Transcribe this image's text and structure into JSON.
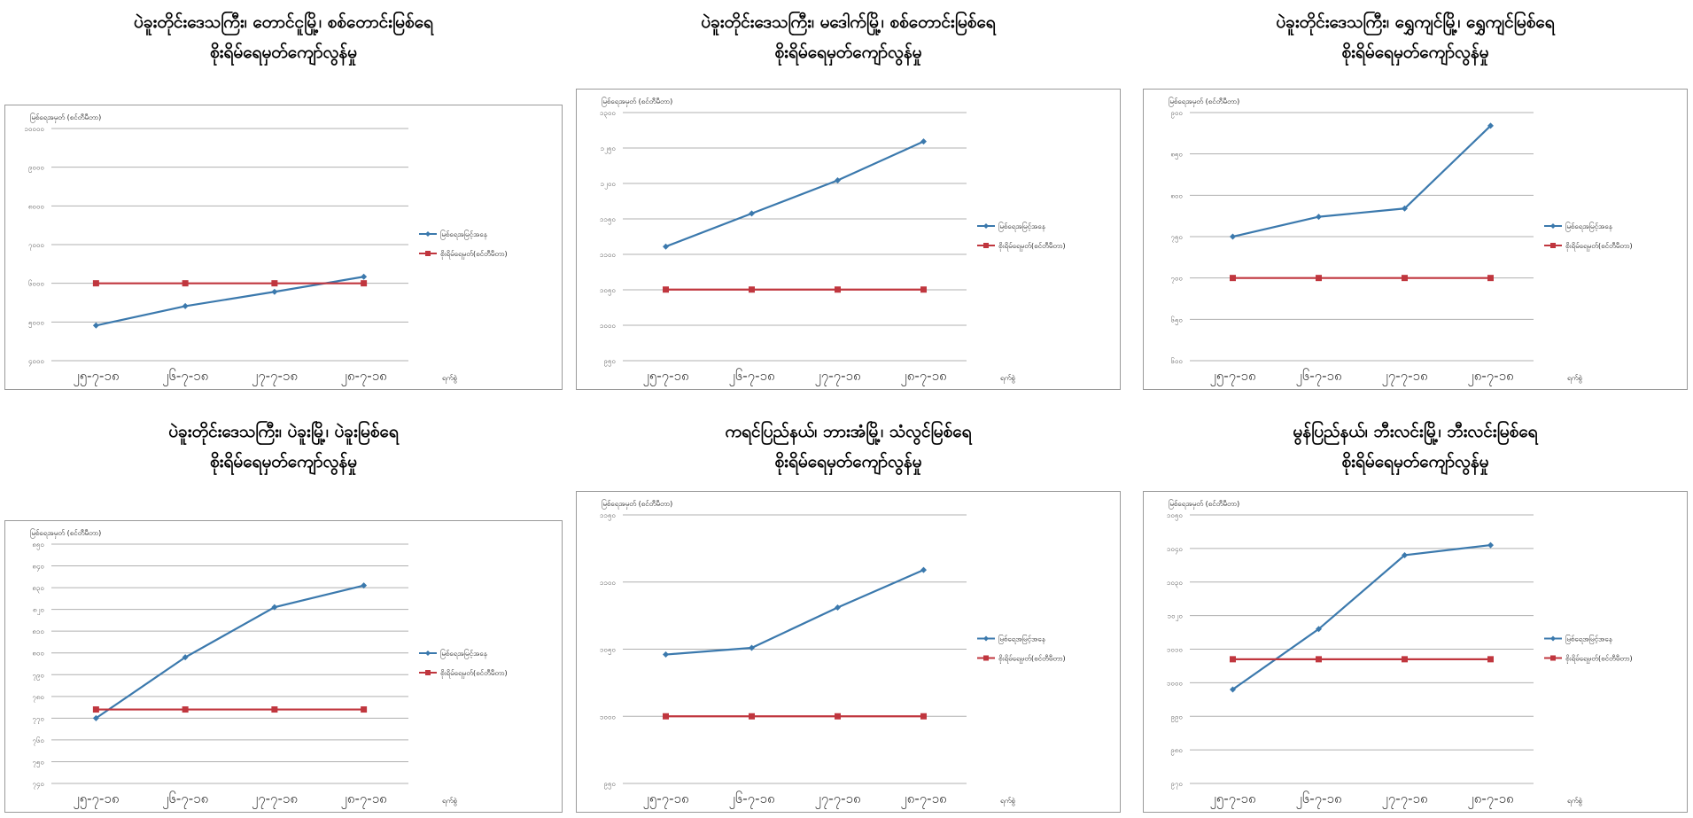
{
  "colors": {
    "water_level": "#3b79ad",
    "danger_level": "#c0363e",
    "grid": "#b0b0b0",
    "frame": "#9a9a9a"
  },
  "common": {
    "ylabel": "မြစ်ရေအမှတ် (စင်တီမီတာ)",
    "xlabel": "ရက်စွဲ",
    "legend_water": "မြစ်ရေအမြင့်အနေ",
    "legend_danger": "စိုးရိမ်ရေမှတ်(စင်တီမီတာ)"
  },
  "chart_data": [
    {
      "type": "line",
      "title": "ပဲခူးတိုင်းဒေသကြီး၊ တောင်ငူမြို့၊ စစ်တောင်းမြစ်ရေ",
      "subtitle": "စိုးရိမ်ရေမှတ်ကျော်လွန်မှု",
      "categories": [
        "၂၅-၇-၁၈",
        "၂၆-၇-၁၈",
        "၂၇-၇-၁၈",
        "၂၈-၇-၁၈"
      ],
      "series": [
        {
          "name": "မြစ်ရေအမြင့်အနေ",
          "values": [
            4910,
            5410,
            5780,
            6170
          ]
        },
        {
          "name": "စိုးရိမ်ရေမှတ်(စင်တီမီတာ)",
          "values": [
            6000,
            6000,
            6000,
            6000
          ]
        }
      ],
      "ylim": [
        4000,
        10000
      ],
      "yticks": [
        "၄၀၀၀",
        "၅၀၀၀",
        "၆၀၀၀",
        "၇၀၀၀",
        "၈၀၀၀",
        "၉၀၀၀",
        "၁၀၀၀၀"
      ],
      "grid": true,
      "legend": "right"
    },
    {
      "type": "line",
      "title": "ပဲခူးတိုင်းဒေသကြီး၊ မဒေါက်မြို့၊ စစ်တောင်းမြစ်ရေ",
      "subtitle": "စိုးရိမ်ရေမှတ်ကျော်လွန်မှု",
      "categories": [
        "၂၅-၇-၁၈",
        "၂၆-၇-၁၈",
        "၂၇-၇-၁၈",
        "၂၈-၇-၁၈"
      ],
      "series": [
        {
          "name": "မြစ်ရေအမြင့်အနေ",
          "values": [
            1088,
            1128,
            1168,
            1215
          ]
        },
        {
          "name": "စိုးရိမ်ရေမှတ်(စင်တီမီတာ)",
          "values": [
            1036,
            1036,
            1036,
            1036
          ]
        }
      ],
      "ylim": [
        950,
        1250
      ],
      "yticks": [
        "၉၅၀",
        "၁၀၀၀",
        "၁၀၅၀",
        "၁၁၀၀",
        "၁၁၅၀",
        "၁၂၀၀",
        "၁၂၅၀",
        "၁၃၀၀"
      ],
      "grid": true,
      "legend": "right"
    },
    {
      "type": "line",
      "title": "ပဲခူးတိုင်းဒေသကြီး၊ ရွှေကျင်မြို့၊ ရွှေကျင်မြစ်ရေ",
      "subtitle": "စိုးရိမ်ရေမှတ်ကျော်လွန်မှု",
      "categories": [
        "၂၅-၇-၁၈",
        "၂၆-၇-၁၈",
        "၂၇-၇-၁၈",
        "၂၈-၇-၁၈"
      ],
      "series": [
        {
          "name": "မြစ်ရေအမြင့်အနေ",
          "values": [
            750,
            774,
            784,
            884
          ]
        },
        {
          "name": "စိုးရိမ်ရေမှတ်(စင်တီမီတာ)",
          "values": [
            700,
            700,
            700,
            700
          ]
        }
      ],
      "ylim": [
        600,
        900
      ],
      "yticks": [
        "၆၀၀",
        "၆၅၀",
        "၇၀၀",
        "၇၅၀",
        "၈၀၀",
        "၈၅၀",
        "၉၀၀"
      ],
      "grid": true,
      "legend": "right"
    },
    {
      "type": "line",
      "title": "ပဲခူးတိုင်းဒေသကြီး၊ ပဲခူးမြို့၊ ပဲခူးမြစ်ရေ",
      "subtitle": "စိုးရိမ်ရေမှတ်ကျော်လွန်မှု",
      "categories": [
        "၂၅-၇-၁၈",
        "၂၆-၇-၁၈",
        "၂၇-၇-၁၈",
        "၂၈-၇-၁၈"
      ],
      "series": [
        {
          "name": "မြစ်ရေအမြင့်အနေ",
          "values": [
            770,
            798,
            821,
            831
          ]
        },
        {
          "name": "စိုးရိမ်ရေမှတ်(စင်တီမီတာ)",
          "values": [
            774,
            774,
            774,
            774
          ]
        }
      ],
      "ylim": [
        740,
        850
      ],
      "yticks": [
        "၇၄၀",
        "၇၅၀",
        "၇၆၀",
        "၇၇၀",
        "၇၈၀",
        "၇၉၀",
        "၈၀၀",
        "၈၁၀",
        "၈၂၀",
        "၈၃၀",
        "၈၄၀",
        "၈၅၀"
      ],
      "grid": true,
      "legend": "right"
    },
    {
      "type": "line",
      "title": "ကရင်ပြည်နယ်၊ ဘားအံမြို့၊ သံလွင်မြစ်ရေ",
      "subtitle": "စိုးရိမ်ရေမှတ်ကျော်လွန်မှု",
      "categories": [
        "၂၅-၇-၁၈",
        "၂၆-၇-၁၈",
        "၂၇-၇-၁၈",
        "၂၈-၇-၁၈"
      ],
      "series": [
        {
          "name": "မြစ်ရေအမြင့်အနေ",
          "values": [
            1046,
            1051,
            1081,
            1109
          ]
        },
        {
          "name": "စိုးရိမ်ရေမှတ်(စင်တီမီတာ)",
          "values": [
            1000,
            1000,
            1000,
            1000
          ]
        }
      ],
      "ylim": [
        950,
        1150
      ],
      "yticks": [
        "၉၅၀",
        "၁၀၀၀",
        "၁၀၅၀",
        "၁၁၀၀",
        "၁၁၅၀"
      ],
      "grid": true,
      "legend": "right"
    },
    {
      "type": "line",
      "title": "မွန်ပြည်နယ်၊ ဘီးလင်းမြို့၊ ဘီးလင်းမြစ်ရေ",
      "subtitle": "စိုးရိမ်ရေမှတ်ကျော်လွန်မှု",
      "categories": [
        "၂၅-၇-၁၈",
        "၂၆-၇-၁၈",
        "၂၇-၇-၁၈",
        "၂၈-၇-၁၈"
      ],
      "series": [
        {
          "name": "မြစ်ရေအမြင့်အနေ",
          "values": [
            998,
            1016,
            1038,
            1041
          ]
        },
        {
          "name": "စိုးရိမ်ရေမှတ်(စင်တီမီတာ)",
          "values": [
            1007,
            1007,
            1007,
            1007
          ]
        }
      ],
      "ylim": [
        970,
        1050
      ],
      "yticks": [
        "၉၇၀",
        "၉၈၀",
        "၉၉၀",
        "၁၀၀၀",
        "၁၀၁၀",
        "၁၀၂၀",
        "၁၀၃၀",
        "၁၀၄၀",
        "၁၀၅၀"
      ],
      "grid": true,
      "legend": "right"
    }
  ]
}
